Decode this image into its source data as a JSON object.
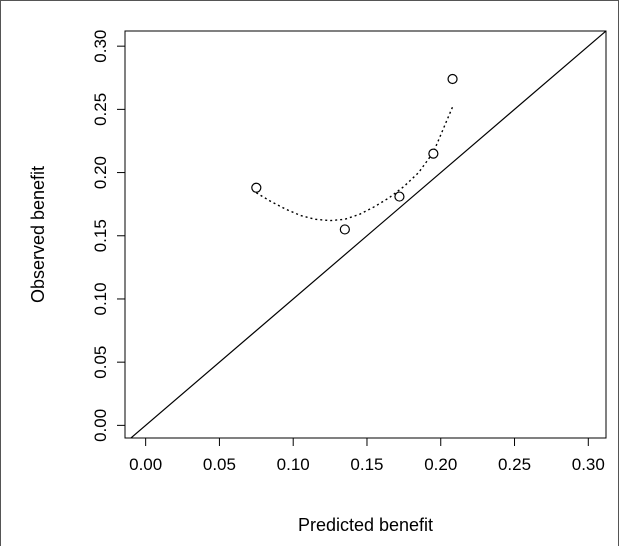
{
  "chart_data": {
    "type": "scatter",
    "title": "",
    "xlabel": "Predicted benefit",
    "ylabel": "Observed benefit",
    "xlim": [
      -0.014,
      0.312
    ],
    "ylim": [
      -0.01,
      0.312
    ],
    "xticks": [
      "0.00",
      "0.05",
      "0.10",
      "0.15",
      "0.20",
      "0.25",
      "0.30"
    ],
    "yticks": [
      "0.00",
      "0.05",
      "0.10",
      "0.15",
      "0.20",
      "0.25",
      "0.30"
    ],
    "grid": false,
    "legend": "none",
    "points": [
      {
        "x": 0.075,
        "y": 0.188
      },
      {
        "x": 0.135,
        "y": 0.155
      },
      {
        "x": 0.172,
        "y": 0.181
      },
      {
        "x": 0.195,
        "y": 0.215
      },
      {
        "x": 0.208,
        "y": 0.274
      }
    ],
    "smooth_curve": [
      {
        "x": 0.075,
        "y": 0.184
      },
      {
        "x": 0.085,
        "y": 0.177
      },
      {
        "x": 0.095,
        "y": 0.171
      },
      {
        "x": 0.105,
        "y": 0.166
      },
      {
        "x": 0.115,
        "y": 0.163
      },
      {
        "x": 0.125,
        "y": 0.162
      },
      {
        "x": 0.135,
        "y": 0.163
      },
      {
        "x": 0.145,
        "y": 0.167
      },
      {
        "x": 0.155,
        "y": 0.173
      },
      {
        "x": 0.165,
        "y": 0.18
      },
      {
        "x": 0.175,
        "y": 0.189
      },
      {
        "x": 0.185,
        "y": 0.2
      },
      {
        "x": 0.195,
        "y": 0.216
      },
      {
        "x": 0.208,
        "y": 0.252
      }
    ],
    "reference_line": {
      "type": "identity",
      "from": [
        -0.014,
        -0.014
      ],
      "to": [
        0.312,
        0.312
      ]
    },
    "colors": {
      "ink": "#000000"
    }
  }
}
